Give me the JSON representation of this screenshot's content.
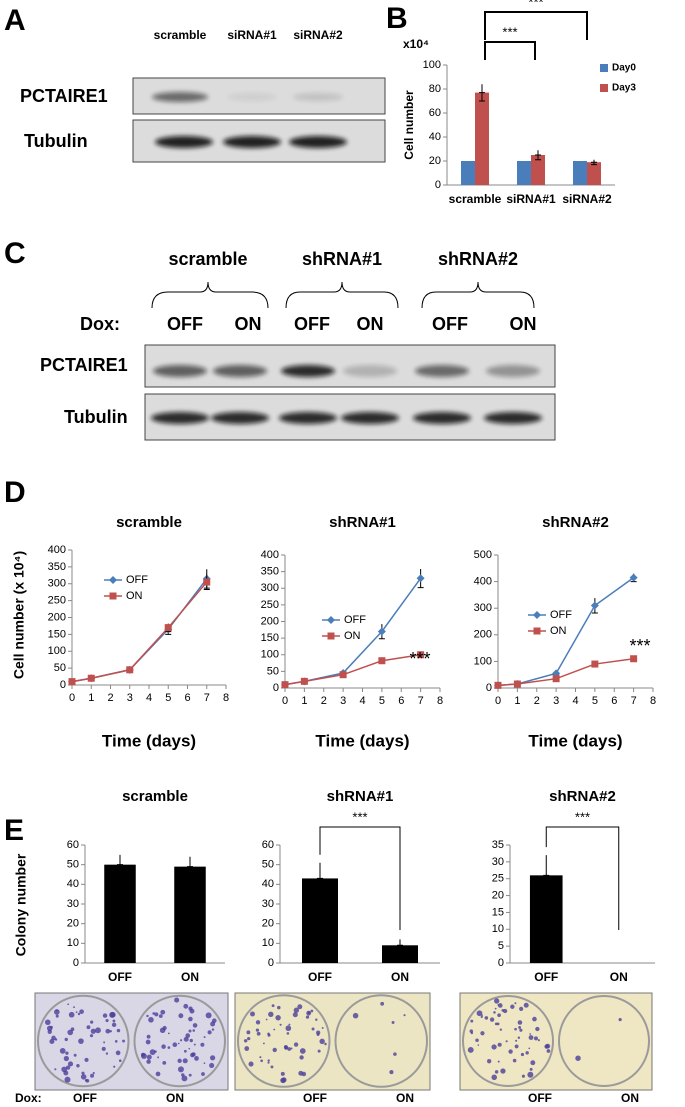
{
  "panel_labels": [
    "A",
    "B",
    "C",
    "D",
    "E"
  ],
  "blot_a": {
    "columns": [
      "scramble",
      "siRNA#1",
      "siRNA#2"
    ],
    "rows": [
      "PCTAIRE1",
      "Tubulin"
    ]
  },
  "blot_c": {
    "groups": [
      "scramble",
      "shRNA#1",
      "shRNA#2"
    ],
    "dox_label": "Dox:",
    "conditions": [
      "OFF",
      "ON",
      "OFF",
      "ON",
      "OFF",
      "ON"
    ],
    "rows": [
      "PCTAIRE1",
      "Tubulin"
    ]
  },
  "colony_photos": {
    "dox_label": "Dox:",
    "conditions": [
      "OFF",
      "ON",
      "OFF",
      "ON",
      "OFF",
      "ON"
    ]
  },
  "chart_data": [
    {
      "type": "bar",
      "ylabel": "Cell number",
      "unit_label": "x10⁴",
      "categories": [
        "scramble",
        "siRNA#1",
        "siRNA#2"
      ],
      "series": [
        {
          "name": "Day0",
          "color": "#4a7ebb",
          "values": [
            20,
            20,
            20
          ]
        },
        {
          "name": "Day3",
          "color": "#c0504d",
          "values": [
            77,
            25,
            19
          ],
          "errors": [
            7,
            4,
            2
          ]
        }
      ],
      "ylim": [
        0,
        100
      ],
      "yticks": [
        0,
        20,
        40,
        60,
        80,
        100
      ],
      "grid": false,
      "annotations": [
        "***",
        "***"
      ]
    },
    {
      "type": "line",
      "title": "scramble",
      "ylabel": "Cell number (x 10⁴)",
      "xlabel": "Time (days)",
      "x": [
        0,
        1,
        3,
        5,
        7
      ],
      "series": [
        {
          "name": "OFF",
          "color": "#4a7ebb",
          "values": [
            10,
            20,
            45,
            165,
            315
          ],
          "errors": [
            2,
            3,
            4,
            15,
            28
          ]
        },
        {
          "name": "ON",
          "color": "#c0504d",
          "values": [
            10,
            20,
            45,
            170,
            305
          ],
          "errors": [
            2,
            3,
            4,
            12,
            22
          ]
        }
      ],
      "xlim": [
        0,
        8
      ],
      "xticks": [
        0,
        1,
        2,
        3,
        4,
        5,
        6,
        7,
        8
      ],
      "ylim": [
        0,
        400
      ],
      "yticks": [
        0,
        50,
        100,
        150,
        200,
        250,
        300,
        350,
        400
      ],
      "grid": false
    },
    {
      "type": "line",
      "title": "shRNA#1",
      "xlabel": "Time (days)",
      "x": [
        0,
        1,
        3,
        5,
        7
      ],
      "series": [
        {
          "name": "OFF",
          "color": "#4a7ebb",
          "values": [
            10,
            20,
            45,
            170,
            330
          ],
          "errors": [
            2,
            3,
            4,
            22,
            28
          ]
        },
        {
          "name": "ON",
          "color": "#c0504d",
          "values": [
            10,
            20,
            40,
            82,
            100
          ],
          "errors": [
            2,
            3,
            4,
            4,
            5
          ]
        }
      ],
      "xlim": [
        0,
        8
      ],
      "xticks": [
        0,
        1,
        2,
        3,
        4,
        5,
        6,
        7,
        8
      ],
      "ylim": [
        0,
        400
      ],
      "yticks": [
        0,
        50,
        100,
        150,
        200,
        250,
        300,
        350,
        400
      ],
      "grid": false,
      "annotations": [
        "***"
      ]
    },
    {
      "type": "line",
      "title": "shRNA#2",
      "xlabel": "Time (days)",
      "x": [
        0,
        1,
        3,
        5,
        7
      ],
      "series": [
        {
          "name": "OFF",
          "color": "#4a7ebb",
          "values": [
            10,
            15,
            55,
            310,
            415
          ],
          "errors": [
            2,
            3,
            5,
            28,
            15
          ]
        },
        {
          "name": "ON",
          "color": "#c0504d",
          "values": [
            10,
            15,
            35,
            90,
            110
          ],
          "errors": [
            2,
            3,
            4,
            5,
            6
          ]
        }
      ],
      "xlim": [
        0,
        8
      ],
      "xticks": [
        0,
        1,
        2,
        3,
        4,
        5,
        6,
        7,
        8
      ],
      "ylim": [
        0,
        500
      ],
      "yticks": [
        0,
        100,
        200,
        300,
        400,
        500
      ],
      "grid": false,
      "annotations": [
        "***"
      ]
    },
    {
      "type": "bar",
      "title": "scramble",
      "ylabel": "Colony number",
      "categories": [
        "OFF",
        "ON"
      ],
      "values": [
        50,
        49
      ],
      "errors": [
        5,
        5
      ],
      "color": "#000000",
      "ylim": [
        0,
        60
      ],
      "yticks": [
        0,
        10,
        20,
        30,
        40,
        50,
        60
      ],
      "grid": false
    },
    {
      "type": "bar",
      "title": "shRNA#1",
      "categories": [
        "OFF",
        "ON"
      ],
      "values": [
        43,
        9
      ],
      "errors": [
        8,
        3
      ],
      "color": "#000000",
      "ylim": [
        0,
        60
      ],
      "yticks": [
        0,
        10,
        20,
        30,
        40,
        50,
        60
      ],
      "grid": false,
      "annotations": [
        "***"
      ]
    },
    {
      "type": "bar",
      "title": "shRNA#2",
      "categories": [
        "OFF",
        "ON"
      ],
      "values": [
        26,
        0
      ],
      "errors": [
        6,
        0
      ],
      "color": "#000000",
      "ylim": [
        0,
        35
      ],
      "yticks": [
        0,
        5,
        10,
        15,
        20,
        25,
        30,
        35
      ],
      "grid": false,
      "annotations": [
        "***"
      ]
    }
  ]
}
